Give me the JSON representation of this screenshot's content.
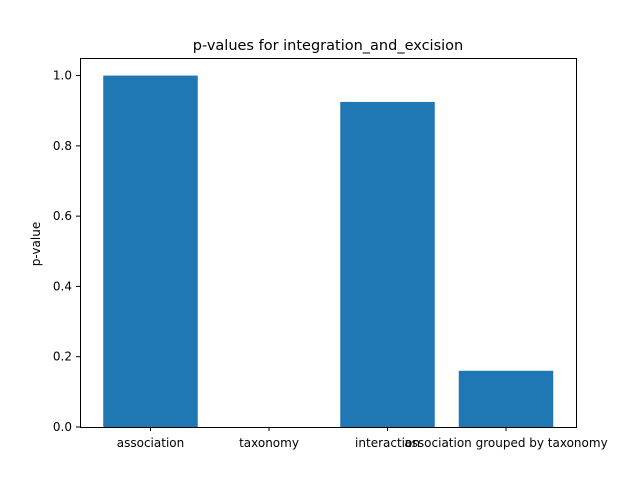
{
  "chart_data": {
    "type": "bar",
    "title": "p-values for integration_and_excision",
    "xlabel": "",
    "ylabel": "p-value",
    "categories": [
      "association",
      "taxonomy",
      "interaction",
      "association grouped by taxonomy"
    ],
    "values": [
      1.0,
      0.0,
      0.925,
      0.16
    ],
    "ylim": [
      0,
      1.05
    ],
    "yticks": [
      0.0,
      0.2,
      0.4,
      0.6,
      0.8,
      1.0
    ],
    "ytick_labels": [
      "0.0",
      "0.2",
      "0.4",
      "0.6",
      "0.8",
      "1.0"
    ],
    "bar_color": "#1f77b4",
    "grid": false
  }
}
